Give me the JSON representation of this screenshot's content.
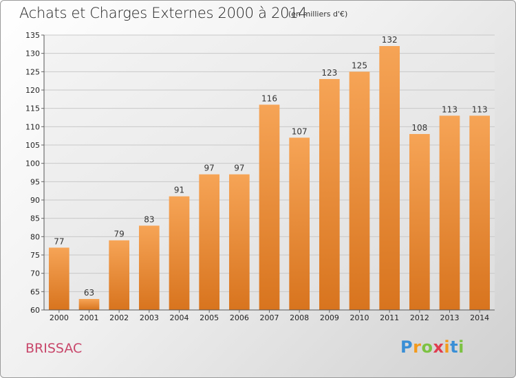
{
  "title": "Achats et Charges Externes 2000 à 2014",
  "subtitle": "(en milliers d'€)",
  "commune": "BRISSAC",
  "logo": {
    "letters": [
      "P",
      "r",
      "o",
      "x",
      "i",
      "t",
      "i"
    ],
    "colors": [
      "#3a8fd6",
      "#f39a1c",
      "#7cc242",
      "#e03c4f",
      "#f39a1c",
      "#3a8fd6",
      "#7cc242"
    ]
  },
  "chart_data": {
    "type": "bar",
    "categories": [
      "2000",
      "2001",
      "2002",
      "2003",
      "2004",
      "2005",
      "2006",
      "2007",
      "2008",
      "2009",
      "2010",
      "2011",
      "2012",
      "2013",
      "2014"
    ],
    "values": [
      77,
      63,
      79,
      83,
      91,
      97,
      97,
      116,
      107,
      123,
      125,
      132,
      108,
      113,
      113
    ],
    "ylim": [
      60,
      135
    ],
    "yticks": [
      60,
      65,
      70,
      75,
      80,
      85,
      90,
      95,
      100,
      105,
      110,
      115,
      120,
      125,
      130,
      135
    ],
    "grid": true,
    "bar_color": "#f2913e"
  }
}
